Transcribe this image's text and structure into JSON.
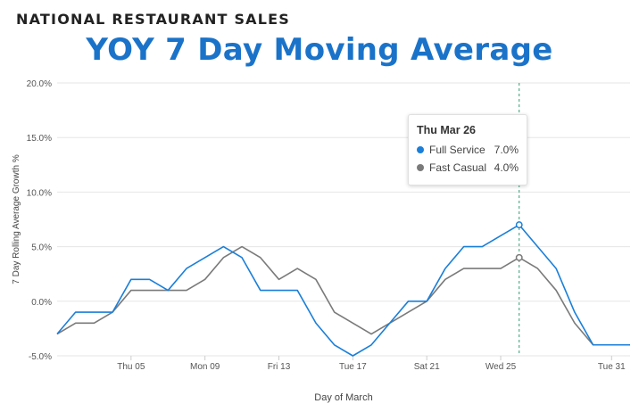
{
  "header": {
    "supertitle": "NATIONAL RESTAURANT SALES",
    "title": "YOY 7 Day Moving Average"
  },
  "colors": {
    "full_service": "#1a7fd9",
    "fast_casual": "#7a7a7a",
    "title": "#1a73c9",
    "grid": "#e6e6e6",
    "crosshair": "#2e9e74"
  },
  "tooltip": {
    "date": "Thu Mar 26",
    "rows": [
      {
        "name": "Full Service",
        "value": "7.0%"
      },
      {
        "name": "Fast Casual",
        "value": "4.0%"
      }
    ]
  },
  "chart_data": {
    "type": "line",
    "title": "YOY 7 Day Moving Average",
    "xlabel": "Day of March",
    "ylabel": "7 Day Rolling Average Growth %",
    "ylim": [
      -5,
      20
    ],
    "yticks": [
      20,
      15,
      10,
      5,
      0,
      -5
    ],
    "ytick_labels": [
      "20.0%",
      "15.0%",
      "10.0%",
      "5.0%",
      "0.0%",
      "-5.0%"
    ],
    "x": [
      1,
      2,
      3,
      4,
      5,
      6,
      7,
      8,
      9,
      10,
      11,
      12,
      13,
      14,
      15,
      16,
      17,
      18,
      19,
      20,
      21,
      22,
      23,
      24,
      25,
      26,
      27,
      28,
      29,
      30,
      31,
      32
    ],
    "xlim": [
      1,
      32
    ],
    "xticks": [
      5,
      9,
      13,
      17,
      21,
      25,
      31
    ],
    "xtick_labels": [
      "Thu 05",
      "Mon 09",
      "Fri 13",
      "Tue 17",
      "Sat 21",
      "Wed 25",
      "Tue 31"
    ],
    "grid": true,
    "highlight_x": 26,
    "series": [
      {
        "name": "Full Service",
        "values": [
          -3,
          -1,
          -1,
          -1,
          2,
          2,
          1,
          3,
          4,
          5,
          4,
          1,
          1,
          1,
          -2,
          -4,
          -5,
          -4,
          -2,
          0,
          0,
          3,
          5,
          5,
          6,
          7,
          5,
          3,
          -1,
          -4,
          -4,
          -4
        ]
      },
      {
        "name": "Fast Casual",
        "values": [
          -3,
          -2,
          -2,
          -1,
          1,
          1,
          1,
          1,
          2,
          4,
          5,
          4,
          2,
          3,
          2,
          -1,
          -2,
          -3,
          -2,
          -1,
          0,
          2,
          3,
          3,
          3,
          4,
          3,
          1,
          -2,
          -4,
          -4,
          -4
        ]
      }
    ]
  }
}
